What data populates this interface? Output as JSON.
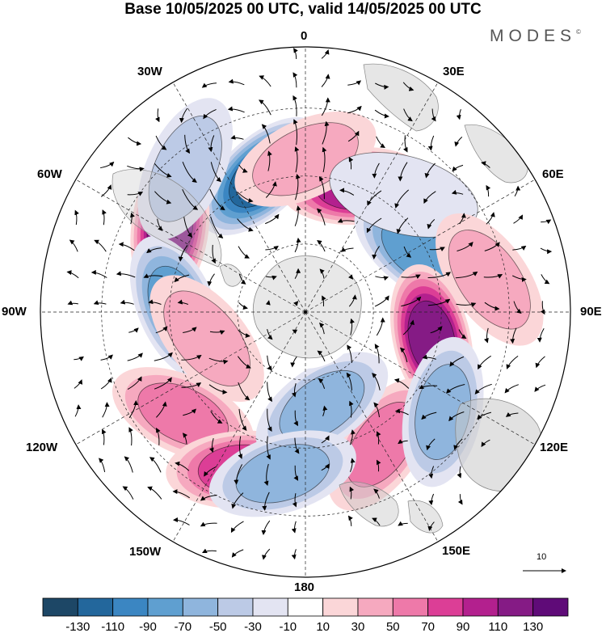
{
  "title": "Base 10/05/2025 00 UTC, valid 14/05/2025 00 UTC",
  "brand": "MODES",
  "brand_mark": "©",
  "longitude_labels": {
    "top": "0",
    "top_right": "30E",
    "right_upper": "60E",
    "right": "90E",
    "right_lower": "120E",
    "bottom_right": "150E",
    "bottom": "180",
    "bottom_left": "150W",
    "left_lower": "120W",
    "left": "90W",
    "left_upper": "60W",
    "top_left": "30W"
  },
  "vector_reference": "10",
  "colorbar": {
    "tick_labels": [
      "-130",
      "-110",
      "-90",
      "-70",
      "-50",
      "-30",
      "-10",
      "10",
      "30",
      "50",
      "70",
      "90",
      "110",
      "130"
    ],
    "colors": [
      "#1d4766",
      "#23679c",
      "#3b86c2",
      "#5f9fd0",
      "#8fb5dd",
      "#bccae6",
      "#e3e4f2",
      "#ffffff",
      "#fbd6d8",
      "#f6a9bf",
      "#ee79a9",
      "#dc3e96",
      "#b3208e",
      "#851b85",
      "#5f0b78"
    ]
  },
  "map_colors": {
    "land": "#e8e8e8",
    "coast": "#888888",
    "grid": "#222222"
  },
  "anomaly_centers": [
    {
      "lon": -18,
      "lat": -48,
      "value": -125
    },
    {
      "lon": 22,
      "lat": -50,
      "value": 105
    },
    {
      "lon": -58,
      "lat": -43,
      "value": 120
    },
    {
      "lon": 62,
      "lat": -52,
      "value": -85
    },
    {
      "lon": -88,
      "lat": -52,
      "value": -85
    },
    {
      "lon": 102,
      "lat": -52,
      "value": 110
    },
    {
      "lon": -130,
      "lat": -43,
      "value": 60
    },
    {
      "lon": 150,
      "lat": -45,
      "value": 60
    },
    {
      "lon": -158,
      "lat": -40,
      "value": 85
    },
    {
      "lon": 170,
      "lat": -62,
      "value": -50
    },
    {
      "lon": -172,
      "lat": -42,
      "value": -60
    },
    {
      "lon": 126,
      "lat": -40,
      "value": -50
    },
    {
      "lon": -105,
      "lat": -60,
      "value": 40
    },
    {
      "lon": 0,
      "lat": -45,
      "value": 35
    },
    {
      "lon": 40,
      "lat": -45,
      "value": -20
    },
    {
      "lon": -40,
      "lat": -35,
      "value": -30
    },
    {
      "lon": 80,
      "lat": -35,
      "value": 30
    }
  ]
}
